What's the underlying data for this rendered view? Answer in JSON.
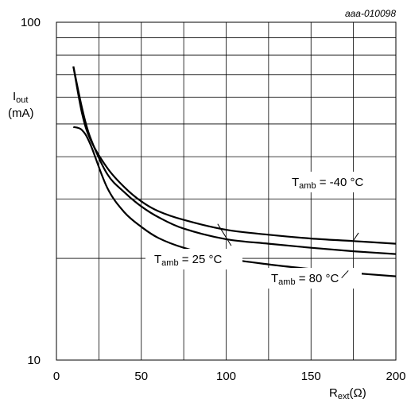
{
  "chart_data": {
    "type": "line",
    "figure_id": "aaa-010098",
    "xscale": "linear",
    "yscale": "log",
    "xlim": [
      0,
      200
    ],
    "ylim": [
      10,
      100
    ],
    "grid": true,
    "xticks": [
      0,
      50,
      100,
      150,
      200
    ],
    "xtick_labels": [
      "0",
      "50",
      "100",
      "150",
      "200"
    ],
    "yticks": [
      10,
      100
    ],
    "ytick_labels": [
      "10",
      "100"
    ],
    "ylabel": {
      "main": "I",
      "sub": "out",
      "unit": "(mA)"
    },
    "xlabel": {
      "main": "R",
      "sub": "ext",
      "unit": "(Ω)"
    },
    "series": [
      {
        "name": "Tamb = -40 °C",
        "label_main": "T",
        "label_sub": "amb",
        "label_value": " = -40 °C",
        "x": [
          10,
          15,
          20,
          30,
          40,
          50,
          60,
          75,
          100,
          125,
          150,
          175,
          200
        ],
        "y": [
          74,
          54,
          45,
          37,
          32.5,
          29.5,
          27.6,
          26,
          24.3,
          23.5,
          22.9,
          22.5,
          22.1
        ]
      },
      {
        "name": "Tamb = 25 °C",
        "label_main": "T",
        "label_sub": "amb",
        "label_value": " = 25 °C",
        "x": [
          10,
          15,
          20,
          30,
          40,
          50,
          60,
          75,
          100,
          125,
          150,
          175,
          200
        ],
        "y": [
          74,
          56,
          45.5,
          35.5,
          31.4,
          28.5,
          26.5,
          24.5,
          22.8,
          22.1,
          21.5,
          21.0,
          20.6
        ]
      },
      {
        "name": "Tamb = 80 °C",
        "label_main": "T",
        "label_sub": "amb",
        "label_value": " = 80 °C",
        "x": [
          10,
          15,
          20,
          30,
          40,
          50,
          60,
          75,
          100,
          125,
          150,
          175,
          200
        ],
        "y": [
          49,
          48,
          43.5,
          32.3,
          27.4,
          24.8,
          23.0,
          21.5,
          20.0,
          19.2,
          18.6,
          18.1,
          17.7
        ]
      }
    ]
  }
}
